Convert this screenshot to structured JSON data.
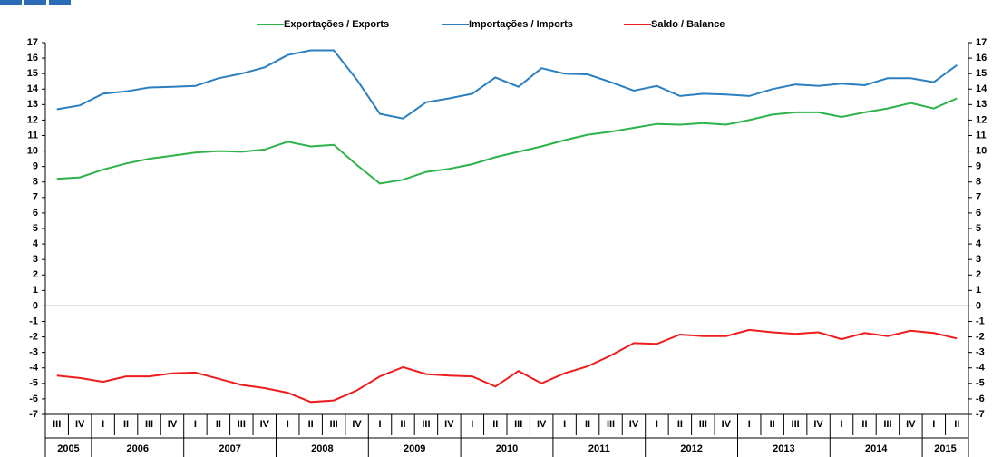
{
  "chart_data": {
    "type": "line",
    "years": [
      {
        "year": "2005",
        "quarters": [
          "III",
          "IV"
        ]
      },
      {
        "year": "2006",
        "quarters": [
          "I",
          "II",
          "III",
          "IV"
        ]
      },
      {
        "year": "2007",
        "quarters": [
          "I",
          "II",
          "III",
          "IV"
        ]
      },
      {
        "year": "2008",
        "quarters": [
          "I",
          "II",
          "III",
          "IV"
        ]
      },
      {
        "year": "2009",
        "quarters": [
          "I",
          "II",
          "III",
          "IV"
        ]
      },
      {
        "year": "2010",
        "quarters": [
          "I",
          "II",
          "III",
          "IV"
        ]
      },
      {
        "year": "2011",
        "quarters": [
          "I",
          "II",
          "III",
          "IV"
        ]
      },
      {
        "year": "2012",
        "quarters": [
          "I",
          "II",
          "III",
          "IV"
        ]
      },
      {
        "year": "2013",
        "quarters": [
          "I",
          "II",
          "III",
          "IV"
        ]
      },
      {
        "year": "2014",
        "quarters": [
          "I",
          "II",
          "III",
          "IV"
        ]
      },
      {
        "year": "2015",
        "quarters": [
          "I",
          "II"
        ]
      }
    ],
    "series": [
      {
        "name": "Exportações / Exports",
        "color": "#2db34a",
        "values": [
          8.2,
          8.3,
          8.8,
          9.2,
          9.5,
          9.7,
          9.9,
          10.0,
          9.95,
          10.1,
          10.6,
          10.3,
          10.4,
          9.1,
          7.9,
          8.15,
          8.65,
          8.85,
          9.15,
          9.6,
          9.95,
          10.3,
          10.7,
          11.05,
          11.25,
          11.5,
          11.75,
          11.7,
          11.8,
          11.7,
          12.0,
          12.35,
          12.5,
          12.5,
          12.2,
          12.5,
          12.75,
          13.1,
          12.75,
          13.4
        ]
      },
      {
        "name": "Importações / Imports",
        "color": "#2a7fc0",
        "values": [
          12.7,
          12.95,
          13.7,
          13.85,
          14.1,
          14.15,
          14.2,
          14.7,
          15.0,
          15.4,
          16.2,
          16.5,
          16.5,
          14.6,
          12.4,
          12.1,
          13.15,
          13.4,
          13.7,
          14.75,
          14.15,
          15.35,
          15.0,
          14.95,
          14.45,
          13.9,
          14.2,
          13.55,
          13.7,
          13.65,
          13.55,
          14.0,
          14.3,
          14.2,
          14.35,
          14.25,
          14.7,
          14.7,
          14.45,
          15.55
        ]
      },
      {
        "name": "Saldo / Balance",
        "color": "#ee1c1c",
        "values": [
          -4.5,
          -4.65,
          -4.9,
          -4.55,
          -4.55,
          -4.35,
          -4.3,
          -4.7,
          -5.1,
          -5.3,
          -5.6,
          -6.2,
          -6.1,
          -5.45,
          -4.55,
          -3.95,
          -4.4,
          -4.5,
          -4.55,
          -5.2,
          -4.2,
          -5.0,
          -4.35,
          -3.9,
          -3.2,
          -2.4,
          -2.45,
          -1.85,
          -1.95,
          -1.95,
          -1.55,
          -1.7,
          -1.8,
          -1.7,
          -2.15,
          -1.75,
          -1.95,
          -1.6,
          -1.75,
          -2.1
        ]
      }
    ],
    "ylim": [
      -7,
      17
    ],
    "yticks": [
      -7,
      -6,
      -5,
      -4,
      -3,
      -2,
      -1,
      0,
      1,
      2,
      3,
      4,
      5,
      6,
      7,
      8,
      9,
      10,
      11,
      12,
      13,
      14,
      15,
      16,
      17
    ]
  }
}
